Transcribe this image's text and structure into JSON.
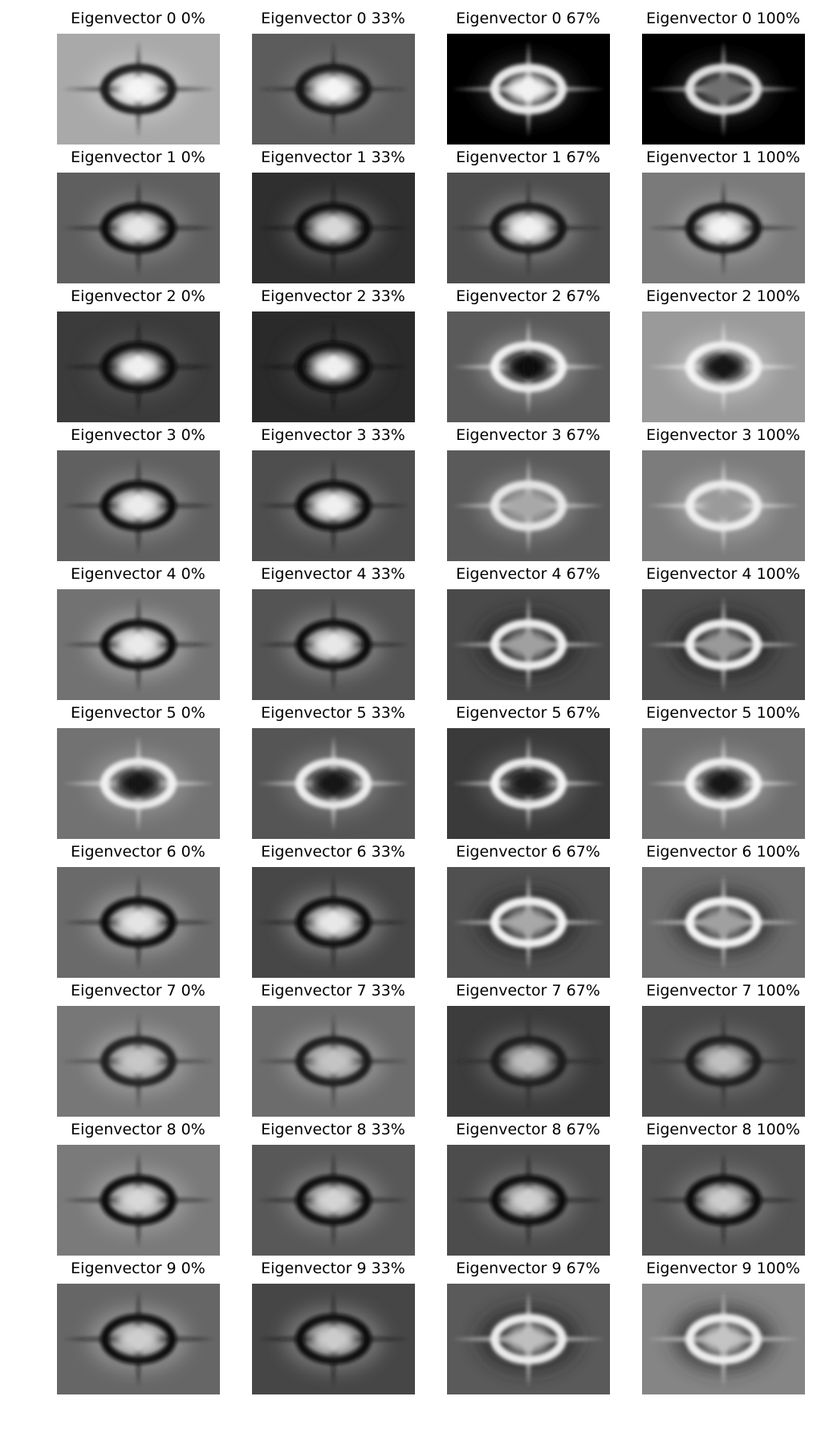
{
  "figure": {
    "panels": [
      {
        "title": "Eigenvector 0 0%",
        "eigenvector": 0,
        "percent": 0,
        "bg": "#a9a9a9",
        "ring": "#1a1a1a",
        "center": "#f5f5f5",
        "halo": "#c8c8c8"
      },
      {
        "title": "Eigenvector 0 33%",
        "eigenvector": 0,
        "percent": 33,
        "bg": "#5c5c5c",
        "ring": "#141414",
        "center": "#f5f5f5",
        "halo": "#7a7a7a"
      },
      {
        "title": "Eigenvector 0 67%",
        "eigenvector": 0,
        "percent": 67,
        "bg": "#000000",
        "ring": "#e8e8e8",
        "center": "#f2f2f2",
        "halo": "#303030"
      },
      {
        "title": "Eigenvector 0 100%",
        "eigenvector": 0,
        "percent": 100,
        "bg": "#000000",
        "ring": "#e0e0e0",
        "center": "#707070",
        "halo": "#2a2a2a"
      },
      {
        "title": "Eigenvector 1 0%",
        "eigenvector": 1,
        "percent": 0,
        "bg": "#5f5f5f",
        "ring": "#111111",
        "center": "#e6e6e6",
        "halo": "#888888"
      },
      {
        "title": "Eigenvector 1 33%",
        "eigenvector": 1,
        "percent": 33,
        "bg": "#2f2f2f",
        "ring": "#0e0e0e",
        "center": "#d8d8d8",
        "halo": "#666666"
      },
      {
        "title": "Eigenvector 1 67%",
        "eigenvector": 1,
        "percent": 67,
        "bg": "#4e4e4e",
        "ring": "#151515",
        "center": "#f0f0f0",
        "halo": "#8a8a8a"
      },
      {
        "title": "Eigenvector 1 100%",
        "eigenvector": 1,
        "percent": 100,
        "bg": "#7a7a7a",
        "ring": "#161616",
        "center": "#f4f4f4",
        "halo": "#a0a0a0"
      },
      {
        "title": "Eigenvector 2 0%",
        "eigenvector": 2,
        "percent": 0,
        "bg": "#3b3b3b",
        "ring": "#0c0c0c",
        "center": "#f0f0f0",
        "halo": "#555555"
      },
      {
        "title": "Eigenvector 2 33%",
        "eigenvector": 2,
        "percent": 33,
        "bg": "#2a2a2a",
        "ring": "#0a0a0a",
        "center": "#f0f0f0",
        "halo": "#444444"
      },
      {
        "title": "Eigenvector 2 67%",
        "eigenvector": 2,
        "percent": 67,
        "bg": "#5a5a5a",
        "ring": "#f2f2f2",
        "center": "#111111",
        "halo": "#909090"
      },
      {
        "title": "Eigenvector 2 100%",
        "eigenvector": 2,
        "percent": 100,
        "bg": "#9a9a9a",
        "ring": "#f4f4f4",
        "center": "#121212",
        "halo": "#c0c0c0"
      },
      {
        "title": "Eigenvector 3 0%",
        "eigenvector": 3,
        "percent": 0,
        "bg": "#606060",
        "ring": "#0e0e0e",
        "center": "#ececec",
        "halo": "#909090"
      },
      {
        "title": "Eigenvector 3 33%",
        "eigenvector": 3,
        "percent": 33,
        "bg": "#4e4e4e",
        "ring": "#0c0c0c",
        "center": "#f0f0f0",
        "halo": "#7c7c7c"
      },
      {
        "title": "Eigenvector 3 67%",
        "eigenvector": 3,
        "percent": 67,
        "bg": "#5a5a5a",
        "ring": "#e6e6e6",
        "center": "#a8a8a8",
        "halo": "#8a8a8a"
      },
      {
        "title": "Eigenvector 3 100%",
        "eigenvector": 3,
        "percent": 100,
        "bg": "#7c7c7c",
        "ring": "#eeeeee",
        "center": "#9a9a9a",
        "halo": "#a8a8a8"
      },
      {
        "title": "Eigenvector 4 0%",
        "eigenvector": 4,
        "percent": 0,
        "bg": "#727272",
        "ring": "#101010",
        "center": "#eaeaea",
        "halo": "#b0b0b0"
      },
      {
        "title": "Eigenvector 4 33%",
        "eigenvector": 4,
        "percent": 33,
        "bg": "#545454",
        "ring": "#0e0e0e",
        "center": "#e8e8e8",
        "halo": "#909090"
      },
      {
        "title": "Eigenvector 4 67%",
        "eigenvector": 4,
        "percent": 67,
        "bg": "#4a4a4a",
        "ring": "#eeeeee",
        "center": "#a0a0a0",
        "halo": "#222222"
      },
      {
        "title": "Eigenvector 4 100%",
        "eigenvector": 4,
        "percent": 100,
        "bg": "#4e4e4e",
        "ring": "#f0f0f0",
        "center": "#9a9a9a",
        "halo": "#1e1e1e"
      },
      {
        "title": "Eigenvector 5 0%",
        "eigenvector": 5,
        "percent": 0,
        "bg": "#727272",
        "ring": "#f0f0f0",
        "center": "#141414",
        "halo": "#989898"
      },
      {
        "title": "Eigenvector 5 33%",
        "eigenvector": 5,
        "percent": 33,
        "bg": "#555555",
        "ring": "#eeeeee",
        "center": "#141414",
        "halo": "#808080"
      },
      {
        "title": "Eigenvector 5 67%",
        "eigenvector": 5,
        "percent": 67,
        "bg": "#3a3a3a",
        "ring": "#f2f2f2",
        "center": "#1a1a1a",
        "halo": "#666666"
      },
      {
        "title": "Eigenvector 5 100%",
        "eigenvector": 5,
        "percent": 100,
        "bg": "#6e6e6e",
        "ring": "#f4f4f4",
        "center": "#161616",
        "halo": "#9a9a9a"
      },
      {
        "title": "Eigenvector 6 0%",
        "eigenvector": 6,
        "percent": 0,
        "bg": "#6a6a6a",
        "ring": "#0e0e0e",
        "center": "#e4e4e4",
        "halo": "#a2a2a2"
      },
      {
        "title": "Eigenvector 6 33%",
        "eigenvector": 6,
        "percent": 33,
        "bg": "#474747",
        "ring": "#0c0c0c",
        "center": "#e8e8e8",
        "halo": "#8c8c8c"
      },
      {
        "title": "Eigenvector 6 67%",
        "eigenvector": 6,
        "percent": 67,
        "bg": "#505050",
        "ring": "#f2f2f2",
        "center": "#a8a8a8",
        "halo": "#222222"
      },
      {
        "title": "Eigenvector 6 100%",
        "eigenvector": 6,
        "percent": 100,
        "bg": "#6c6c6c",
        "ring": "#f4f4f4",
        "center": "#a0a0a0",
        "halo": "#262626"
      },
      {
        "title": "Eigenvector 7 0%",
        "eigenvector": 7,
        "percent": 0,
        "bg": "#777777",
        "ring": "#222222",
        "center": "#c8c8c8",
        "halo": "#a8a8a8"
      },
      {
        "title": "Eigenvector 7 33%",
        "eigenvector": 7,
        "percent": 33,
        "bg": "#6c6c6c",
        "ring": "#1c1c1c",
        "center": "#c4c4c4",
        "halo": "#a0a0a0"
      },
      {
        "title": "Eigenvector 7 67%",
        "eigenvector": 7,
        "percent": 67,
        "bg": "#3c3c3c",
        "ring": "#1a1a1a",
        "center": "#bebebe",
        "halo": "#6a6a6a"
      },
      {
        "title": "Eigenvector 7 100%",
        "eigenvector": 7,
        "percent": 100,
        "bg": "#4c4c4c",
        "ring": "#1c1c1c",
        "center": "#c0c0c0",
        "halo": "#767676"
      },
      {
        "title": "Eigenvector 8 0%",
        "eigenvector": 8,
        "percent": 0,
        "bg": "#7a7a7a",
        "ring": "#101010",
        "center": "#d8d8d8",
        "halo": "#a4a4a4"
      },
      {
        "title": "Eigenvector 8 33%",
        "eigenvector": 8,
        "percent": 33,
        "bg": "#585858",
        "ring": "#0e0e0e",
        "center": "#d4d4d4",
        "halo": "#8a8a8a"
      },
      {
        "title": "Eigenvector 8 67%",
        "eigenvector": 8,
        "percent": 67,
        "bg": "#4c4c4c",
        "ring": "#0e0e0e",
        "center": "#d0d0d0",
        "halo": "#7c7c7c"
      },
      {
        "title": "Eigenvector 8 100%",
        "eigenvector": 8,
        "percent": 100,
        "bg": "#535353",
        "ring": "#0e0e0e",
        "center": "#cccccc",
        "halo": "#7e7e7e"
      },
      {
        "title": "Eigenvector 9 0%",
        "eigenvector": 9,
        "percent": 0,
        "bg": "#666666",
        "ring": "#0c0c0c",
        "center": "#cfcfcf",
        "halo": "#a0a0a0"
      },
      {
        "title": "Eigenvector 9 33%",
        "eigenvector": 9,
        "percent": 33,
        "bg": "#464646",
        "ring": "#0a0a0a",
        "center": "#cccccc",
        "halo": "#888888"
      },
      {
        "title": "Eigenvector 9 67%",
        "eigenvector": 9,
        "percent": 67,
        "bg": "#5a5a5a",
        "ring": "#ececec",
        "center": "#bfbfbf",
        "halo": "#242424"
      },
      {
        "title": "Eigenvector 9 100%",
        "eigenvector": 9,
        "percent": 100,
        "bg": "#858585",
        "ring": "#eeeeee",
        "center": "#c4c4c4",
        "halo": "#2a2a2a"
      }
    ]
  }
}
